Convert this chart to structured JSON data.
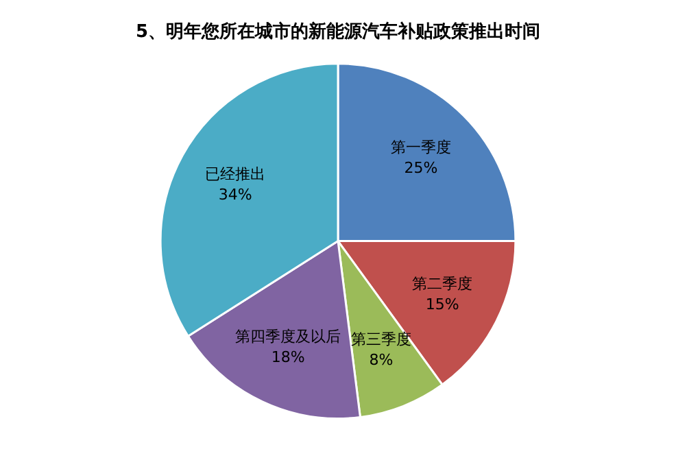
{
  "chart_data": {
    "type": "pie",
    "title": "5、明年您所在城市的新能源汽车补贴政策推出时间",
    "categories": [
      "第一季度",
      "第二季度",
      "第三季度",
      "第四季度及以后",
      "已经推出"
    ],
    "values": [
      25,
      15,
      8,
      18,
      34
    ],
    "value_labels": [
      "25%",
      "15%",
      "8%",
      "18%",
      "34%"
    ],
    "colors": [
      "#4f81bd",
      "#c0504d",
      "#9bbb59",
      "#8064a2",
      "#4bacc6"
    ],
    "legend": false
  }
}
